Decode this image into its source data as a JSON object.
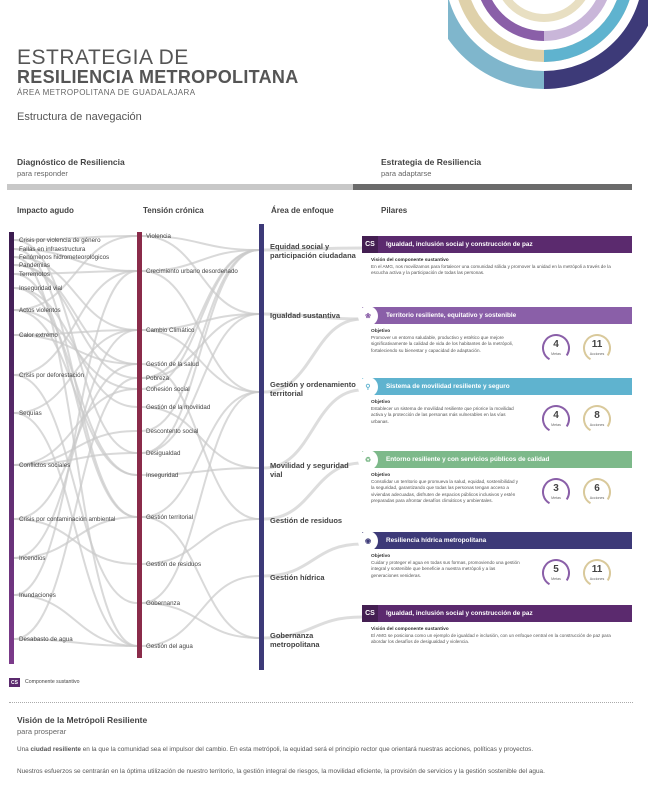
{
  "header": {
    "line1": "ESTRATEGIA DE",
    "line2": "RESILIENCIA METROPOLITANA",
    "line3": "ÁREA METROPOLITANA DE GUADALAJARA",
    "nav_title": "Estructura de navegación"
  },
  "sections": {
    "left": {
      "title": "Diagnóstico de Resiliencia",
      "sub": "para responder"
    },
    "right": {
      "title": "Estrategia de Resiliencia",
      "sub": "para adaptarse"
    }
  },
  "columns": {
    "impacto": "Impacto agudo",
    "tension": "Tensión crónica",
    "area": "Área de enfoque",
    "pilares": "Pilares"
  },
  "impacto_items": [
    "Crisis por violencia de género",
    "Fallas en infraestructura",
    "Fenómenos hidrometeorológicos",
    "Pandemias",
    "Terremotos",
    "Inseguridad vial",
    "Actos violentos",
    "Calor extremo",
    "Crisis por deforestación",
    "Sequías",
    "Conflictos sociales",
    "Crisis por contaminación ambiental",
    "Incendios",
    "Inundaciones",
    "Desabasto de agua"
  ],
  "tension_items": [
    "Violencia",
    "Crecimiento urbano desordenado",
    "Cambio Climático",
    "Gestión de la salud",
    "Pobreza",
    "Cohesión social",
    "Gestión de la movilidad",
    "Descontento social",
    "Desigualdad",
    "Inseguridad",
    "Gestión territorial",
    "Gestión de residuos",
    "Gobernanza",
    "Gestión del agua"
  ],
  "areas": [
    "Equidad social y participación ciudadana",
    "Igualdad sustantiva",
    "Gestión y ordenamiento territorial",
    "Movilidad y seguridad vial",
    "Gestión de residuos",
    "Gestión hídrica",
    "Gobernanza metropolitana"
  ],
  "pilares": [
    {
      "icon": "CS",
      "title": "Igualdad, inclusión social y construcción de paz",
      "color": "#5b2a6e",
      "heading": "Visión del componente sustantivo",
      "text": "En el AMG, nos movilizamos para fortalecer una comunidad sólida y promover la unidad en la metrópoli a través de la escucha activa y la participación de todas las personas."
    },
    {
      "icon": "",
      "title": "Territorio resiliente, equitativo y sostenible",
      "color": "#8a5fa8",
      "heading": "Objetivo",
      "text": "Promover un entorno saludable, productivo y estético que mejore significativamente la calidad de vida de los habitantes de la metrópoli, fortaleciendo su bienestar y capacidad de adaptación.",
      "metas": "4",
      "acciones": "11"
    },
    {
      "icon": "",
      "title": "Sistema de movilidad resiliente y seguro",
      "color": "#5fb3cf",
      "heading": "Objetivo",
      "text": "Establecer un sistema de movilidad resiliente que priorice la movilidad activa y la protección de las personas más vulnerables en las vías urbanas.",
      "metas": "4",
      "acciones": "8"
    },
    {
      "icon": "",
      "title": "Entorno resiliente y con servicios públicos de calidad",
      "color": "#7db98a",
      "heading": "Objetivo",
      "text": "Consolidar un territorio que promueva la salud, equidad, sostenibilidad y la seguridad, garantizando que todas las personas tengan acceso a viviendas adecuadas, disfruten de espacios públicos inclusivos y estén preparadas para afrontar desafíos climáticos y ambientales.",
      "metas": "3",
      "acciones": "6"
    },
    {
      "icon": "",
      "title": "Resiliencia hídrica metropolitana",
      "color": "#3d3a78",
      "heading": "Objetivo",
      "text": "Cuidar y proteger el agua en todas sus formas, promoviendo una gestión integral y sostenible que beneficie a nuestra metrópoli y a las generaciones venideras.",
      "metas": "5",
      "acciones": "11"
    },
    {
      "icon": "CS",
      "title": "Igualdad, inclusión social y construcción de paz",
      "color": "#5b2a6e",
      "heading": "Visión del componente sustantivo",
      "text": "El AMG se posiciona como un ejemplo de igualdad e inclusión, con un enfoque central en la construcción de paz para abordar los desafíos de desigualdad y violencia."
    }
  ],
  "gauge_labels": {
    "metas": "Metas",
    "acciones": "Acciones"
  },
  "legend": {
    "icon": "CS",
    "label": "Componente sustantivo"
  },
  "footer": {
    "title": "Visión de la Metrópoli Resiliente",
    "sub": "para prosperar",
    "p1_pre": "Una ",
    "p1_bold": "ciudad resiliente",
    "p1_post": " en la que la comunidad sea el impulsor del cambio. En esta metrópoli, la equidad será el principio rector que orientará nuestras acciones, políticas y proyectos.",
    "p2": "Nuestros esfuerzos se centrarán en la óptima utilización de nuestro territorio, la gestión integral de riesgos, la movilidad eficiente, la provisión de servicios y la gestión sostenible del agua."
  },
  "colors": {
    "impacto_bar_top": "#3b1c4f",
    "impacto_bar_bottom": "#7b3a8a",
    "tension_bar": "#8a2b4a",
    "area_bar": "#3d3a78",
    "divider_dark": "#6b6b6b",
    "divider_light": "#c8c8c8"
  }
}
